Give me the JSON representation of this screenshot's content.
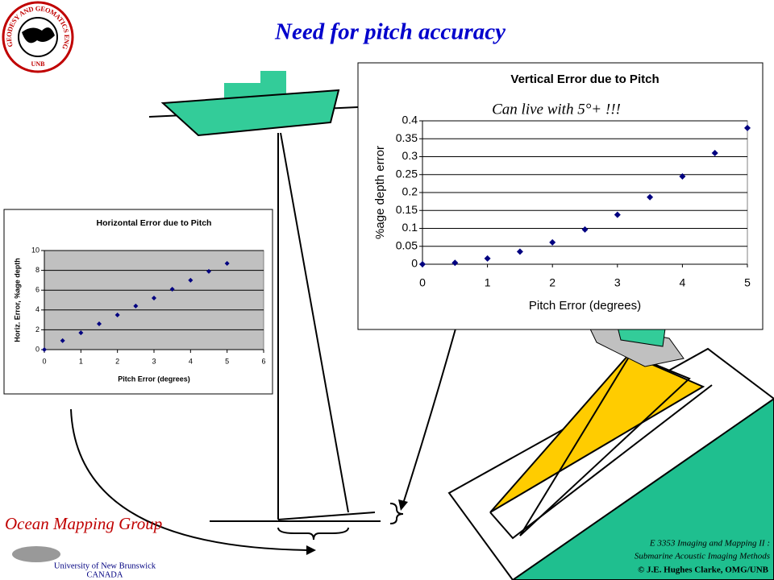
{
  "slide": {
    "title": "Need for pitch accuracy",
    "logo_text": "GEODESY AND GEOMATICS ENGINEERING",
    "logo_abbrev": "UNB",
    "group": "Ocean Mapping Group",
    "university": "University of New Brunswick",
    "country": "CANADA",
    "course": "E 3353 Imaging and Mapping II :",
    "course_subtitle": "Submarine Acoustic Imaging Methods",
    "copyright": "© J.E. Hughes Clarke, OMG/UNB"
  },
  "chart_data": [
    {
      "type": "scatter",
      "title": "Vertical Error due to Pitch",
      "annotation": "Can live with 5°+ !!!",
      "x_label": "Pitch Error (degrees)",
      "y_label": "%age depth error",
      "x": [
        0,
        0.5,
        1,
        1.5,
        2,
        2.5,
        3,
        3.5,
        4,
        4.5,
        5
      ],
      "series": [
        {
          "color": "#000080",
          "values": [
            0,
            0.004,
            0.016,
            0.035,
            0.061,
            0.097,
            0.138,
            0.187,
            0.245,
            0.31,
            0.38
          ]
        }
      ],
      "xlim": [
        0,
        5
      ],
      "xticks": [
        0,
        1,
        2,
        3,
        4,
        5
      ],
      "ylim": [
        0,
        0.4
      ],
      "yticks": [
        0,
        0.05,
        0.1,
        0.15,
        0.2,
        0.25,
        0.3,
        0.35,
        0.4
      ],
      "grid": true,
      "plot_color": "#ffffff"
    },
    {
      "type": "scatter",
      "title": "Horizontal Error due to Pitch",
      "x_label": "Pitch Error (degrees)",
      "y_label": "Horiz. Error, %age depth",
      "x": [
        0,
        0.5,
        1,
        1.5,
        2,
        2.5,
        3,
        3.5,
        4,
        4.5,
        5
      ],
      "series": [
        {
          "color": "#000080",
          "values": [
            0,
            0.9,
            1.7,
            2.6,
            3.5,
            4.4,
            5.2,
            6.1,
            7.0,
            7.9,
            8.7
          ]
        }
      ],
      "xlim": [
        0,
        6
      ],
      "xticks": [
        0,
        1,
        2,
        3,
        4,
        5,
        6
      ],
      "ylim": [
        0,
        10
      ],
      "yticks": [
        0,
        2,
        4,
        6,
        8,
        10
      ],
      "grid": true,
      "plot_color": "#c0c0c0"
    }
  ]
}
